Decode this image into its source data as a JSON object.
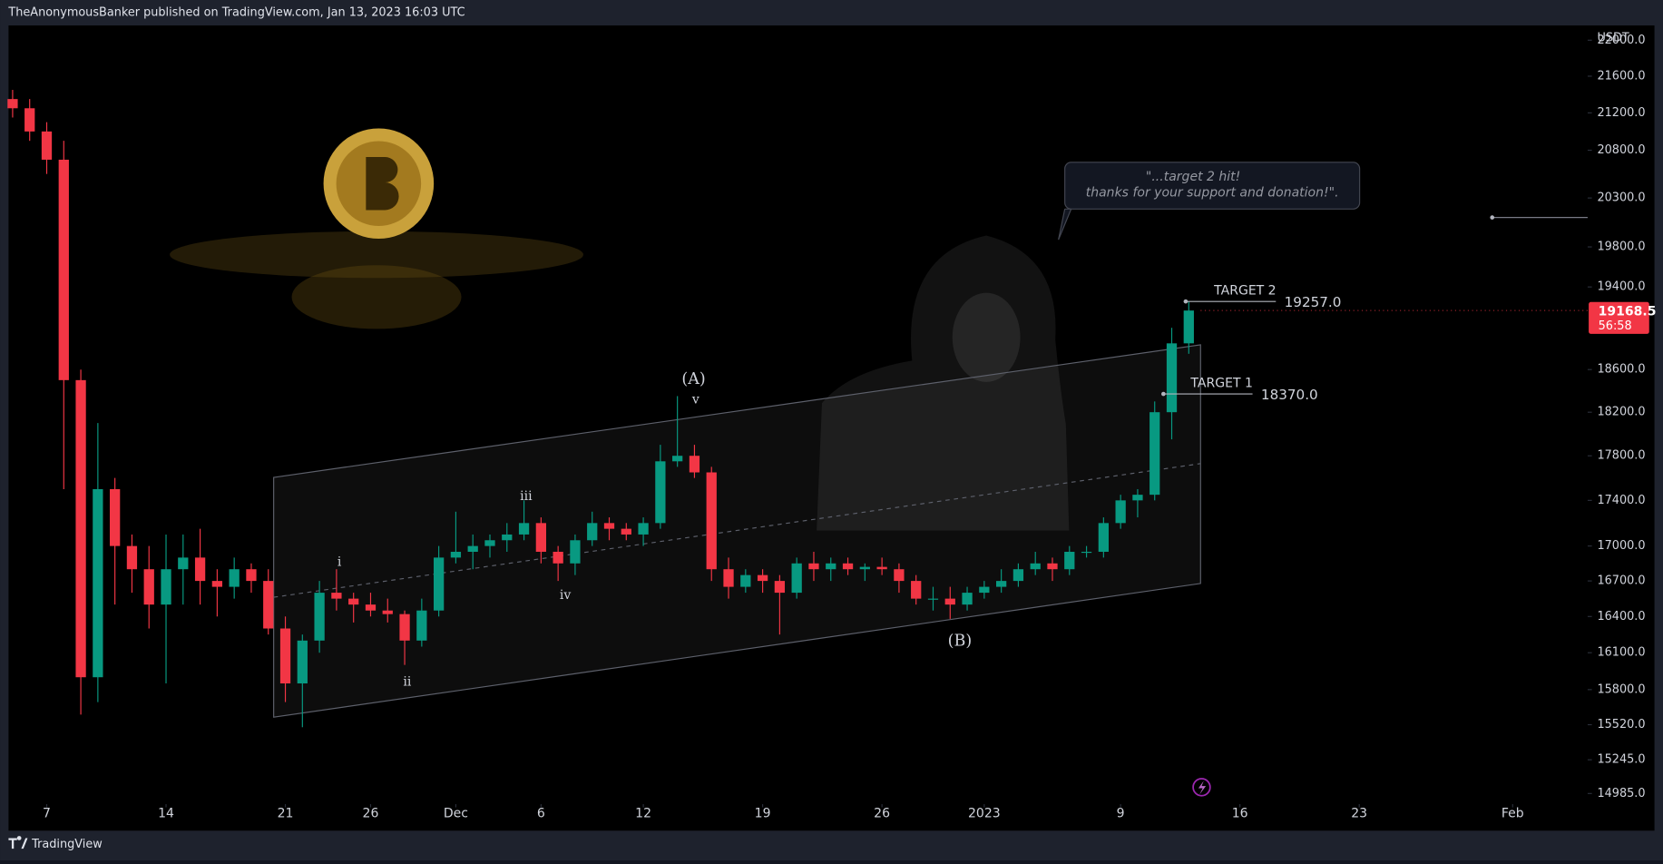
{
  "header": {
    "title": "TheAnonymousBanker published on TradingView.com, Jan 13, 2023 16:03 UTC"
  },
  "footer": {
    "brand": "TradingView"
  },
  "chart_data": {
    "type": "candlestick",
    "currency": "USDT",
    "log_scale": true,
    "up_color": "#089981",
    "down_color": "#f23645",
    "x": [
      5,
      6,
      7,
      8,
      9,
      10,
      11,
      12,
      13,
      14,
      15,
      16,
      17,
      18,
      19,
      20,
      21,
      22,
      23,
      24,
      25,
      26,
      27,
      28,
      29,
      30,
      31,
      32,
      33,
      34,
      35,
      36,
      37,
      38,
      39,
      40,
      41,
      42,
      43,
      44,
      45,
      46,
      47,
      48,
      49,
      50,
      51,
      52,
      53,
      54,
      55,
      56,
      57,
      58,
      59,
      60,
      61,
      62,
      63,
      64,
      65,
      66,
      67,
      68,
      69,
      70,
      71,
      72,
      73,
      74
    ],
    "open": [
      21350,
      21250,
      21000,
      20700,
      18500,
      15900,
      17500,
      17000,
      16800,
      16500,
      16800,
      16900,
      16700,
      16650,
      16800,
      16700,
      16300,
      15850,
      16200,
      16600,
      16550,
      16500,
      16450,
      16420,
      16200,
      16450,
      16900,
      16950,
      17000,
      17050,
      17100,
      17200,
      16950,
      16850,
      17050,
      17200,
      17150,
      17100,
      17200,
      17750,
      17800,
      17650,
      16800,
      16650,
      16750,
      16700,
      16600,
      16850,
      16800,
      16850,
      16800,
      16820,
      16800,
      16700,
      16550,
      16550,
      16500,
      16600,
      16650,
      16700,
      16800,
      16850,
      16800,
      16950,
      16950,
      17200,
      17400,
      17450,
      18200,
      18850
    ],
    "high": [
      21450,
      21350,
      21100,
      20900,
      18600,
      18100,
      17600,
      17100,
      17000,
      17100,
      17100,
      17150,
      16800,
      16900,
      16850,
      16800,
      16400,
      16250,
      16700,
      16800,
      16600,
      16600,
      16550,
      16450,
      16550,
      17000,
      17300,
      17100,
      17100,
      17200,
      17400,
      17250,
      17000,
      17100,
      17300,
      17250,
      17200,
      17250,
      17900,
      18350,
      17900,
      17700,
      16900,
      16800,
      16800,
      16750,
      16900,
      16950,
      16900,
      16900,
      16850,
      16900,
      16850,
      16750,
      16650,
      16650,
      16650,
      16700,
      16800,
      16850,
      16950,
      16900,
      17000,
      17000,
      17250,
      17450,
      17500,
      18300,
      19000,
      19257
    ],
    "low": [
      21150,
      20900,
      20550,
      17500,
      15600,
      15700,
      16500,
      16600,
      16300,
      15850,
      16500,
      16500,
      16400,
      16550,
      16600,
      16250,
      15700,
      15500,
      16100,
      16450,
      16350,
      16400,
      16350,
      16000,
      16150,
      16400,
      16850,
      16800,
      16900,
      16950,
      17050,
      16850,
      16700,
      16750,
      17000,
      17050,
      17050,
      17000,
      17150,
      17700,
      17600,
      16700,
      16550,
      16600,
      16600,
      16250,
      16550,
      16700,
      16700,
      16750,
      16700,
      16750,
      16600,
      16500,
      16450,
      16380,
      16450,
      16550,
      16600,
      16650,
      16750,
      16700,
      16750,
      16900,
      16900,
      17150,
      17250,
      17400,
      17950,
      18750
    ],
    "close": [
      21250,
      21000,
      20700,
      18500,
      15900,
      17500,
      17000,
      16800,
      16500,
      16800,
      16900,
      16700,
      16650,
      16800,
      16700,
      16300,
      15850,
      16200,
      16600,
      16550,
      16500,
      16450,
      16420,
      16200,
      16450,
      16900,
      16950,
      17000,
      17050,
      17100,
      17200,
      16950,
      16850,
      17050,
      17200,
      17150,
      17100,
      17200,
      17750,
      17800,
      17650,
      16800,
      16650,
      16750,
      16700,
      16600,
      16850,
      16800,
      16850,
      16800,
      16820,
      16800,
      16700,
      16550,
      16550,
      16500,
      16600,
      16650,
      16700,
      16800,
      16850,
      16800,
      16950,
      16950,
      17200,
      17400,
      17450,
      18200,
      18850,
      19168
    ],
    "xlim": [
      4.76,
      97.4
    ],
    "xticks": [
      {
        "value": 7,
        "label": "7"
      },
      {
        "value": 14,
        "label": "14"
      },
      {
        "value": 21,
        "label": "21"
      },
      {
        "value": 26,
        "label": "26"
      },
      {
        "value": 31,
        "label": "Dec"
      },
      {
        "value": 36,
        "label": "6"
      },
      {
        "value": 42,
        "label": "12"
      },
      {
        "value": 49,
        "label": "19"
      },
      {
        "value": 56,
        "label": "26"
      },
      {
        "value": 62,
        "label": "2023"
      },
      {
        "value": 70,
        "label": "9"
      },
      {
        "value": 77,
        "label": "16"
      },
      {
        "value": 84,
        "label": "23"
      },
      {
        "value": 93,
        "label": "Feb"
      }
    ],
    "ylim": [
      14904,
      22166
    ],
    "yticks": [
      {
        "value": 22000,
        "label": "22000.0"
      },
      {
        "value": 21600,
        "label": "21600.0"
      },
      {
        "value": 21200,
        "label": "21200.0"
      },
      {
        "value": 20800,
        "label": "20800.0"
      },
      {
        "value": 20300,
        "label": "20300.0"
      },
      {
        "value": 19800,
        "label": "19800.0"
      },
      {
        "value": 19400,
        "label": "19400.0"
      },
      {
        "value": 18600,
        "label": "18600.0"
      },
      {
        "value": 18200,
        "label": "18200.0"
      },
      {
        "value": 17800,
        "label": "17800.0"
      },
      {
        "value": 17400,
        "label": "17400.0"
      },
      {
        "value": 17000,
        "label": "17000.0"
      },
      {
        "value": 16700,
        "label": "16700.0"
      },
      {
        "value": 16400,
        "label": "16400.0"
      },
      {
        "value": 16100,
        "label": "16100.0"
      },
      {
        "value": 15800,
        "label": "15800.0"
      },
      {
        "value": 15520,
        "label": "15520.0"
      },
      {
        "value": 15245,
        "label": "15245.0"
      },
      {
        "value": 14985,
        "label": "14985.0"
      }
    ],
    "last_price": 19168.5,
    "countdown": "56:58",
    "targets": [
      {
        "name": "TARGET 2",
        "value": 19257,
        "value_label": "19257.0"
      },
      {
        "name": "TARGET 1",
        "value": 18370,
        "value_label": "18370.0"
      }
    ],
    "waves": [
      "(A)",
      "v",
      "iii",
      "i",
      "ii",
      "iv",
      "(B)"
    ],
    "callout": [
      "\"...target 2 hit!",
      "thanks for your support and donation!\"."
    ]
  }
}
